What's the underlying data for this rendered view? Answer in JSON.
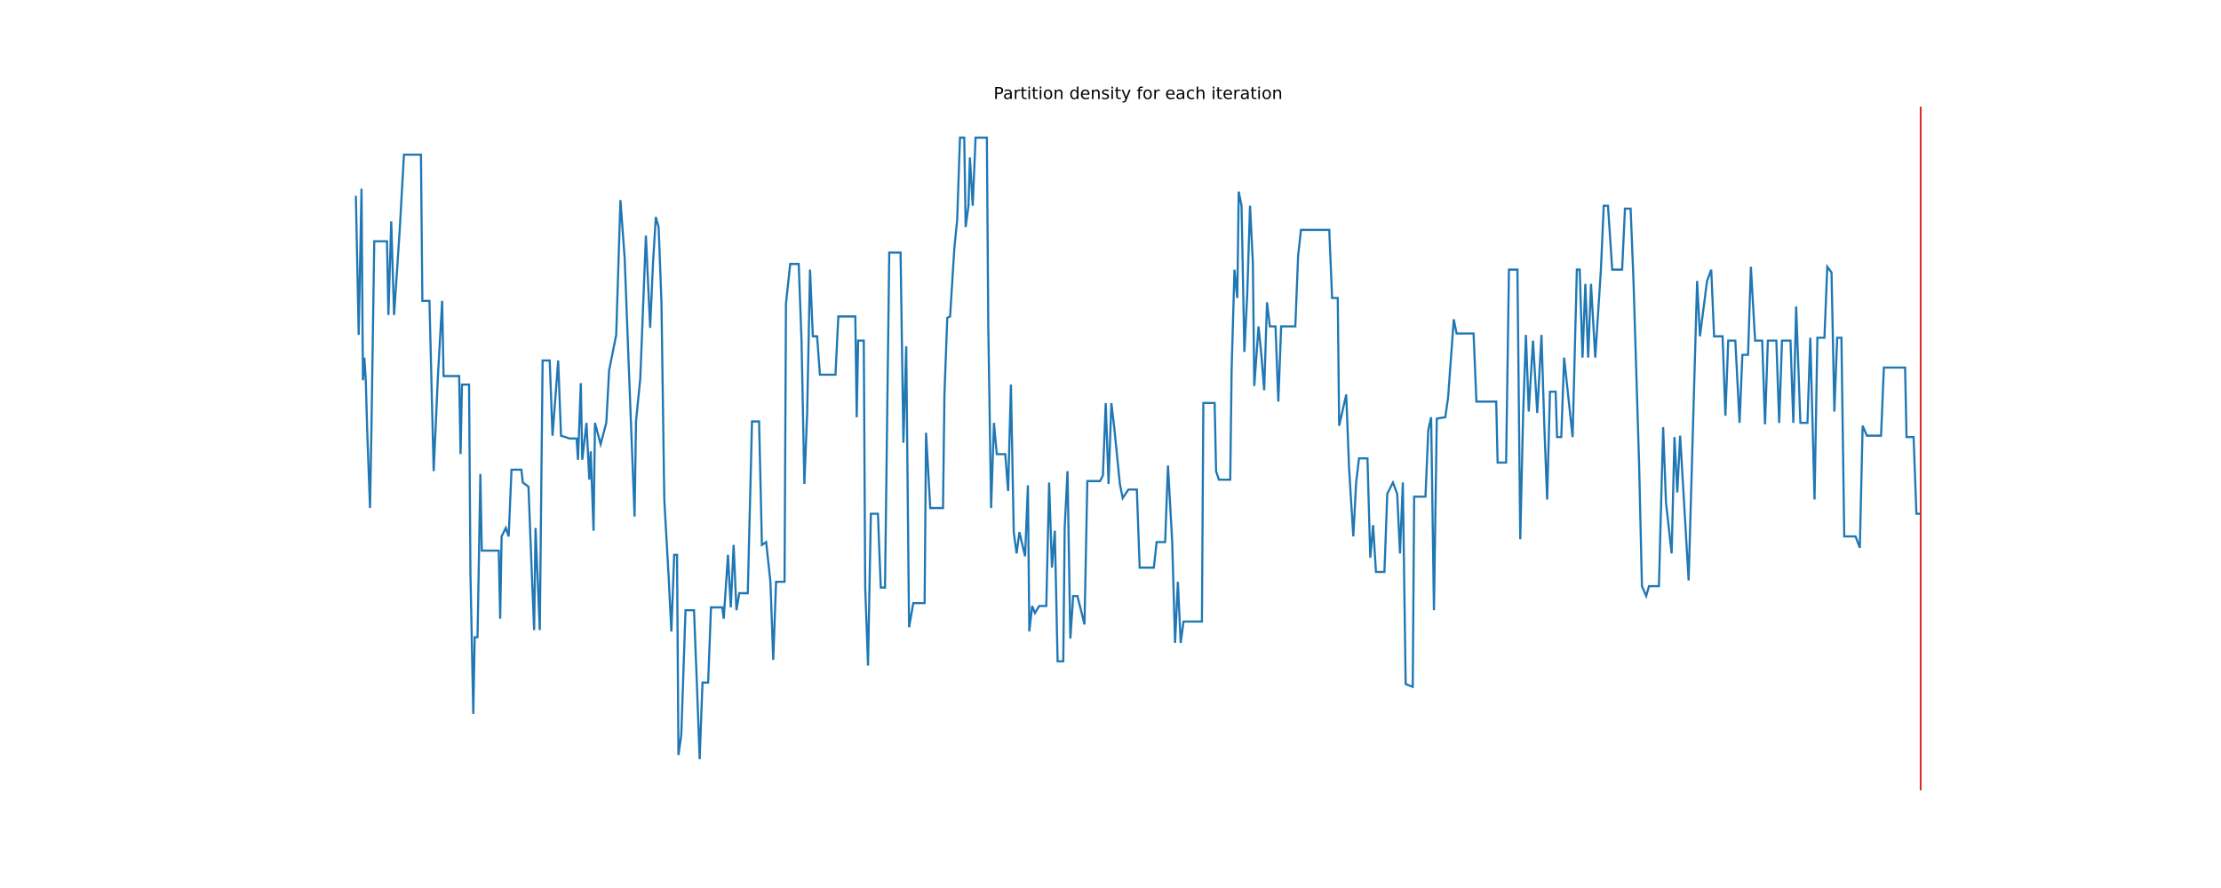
{
  "chart_data": {
    "type": "line",
    "title": "Partition density for each iteration",
    "x": [
      0,
      2,
      4,
      5,
      6,
      7,
      8,
      10,
      11,
      13,
      22,
      23,
      25,
      27,
      31,
      34,
      46,
      47,
      52,
      55,
      58,
      61,
      62,
      73,
      74,
      75,
      80,
      81,
      83,
      84,
      86,
      88,
      89,
      101,
      102,
      103,
      106,
      108,
      110,
      117,
      118,
      122,
      124,
      126,
      127,
      130,
      132,
      137,
      139,
      143,
      145,
      151,
      156,
      157,
      159,
      160,
      163,
      165,
      166,
      168,
      169,
      173,
      177,
      179,
      184,
      187,
      190,
      193,
      197,
      198,
      201,
      205,
      208,
      210,
      212,
      214,
      216,
      218,
      221,
      223,
      225,
      227,
      228,
      230,
      233,
      239,
      241,
      243,
      245,
      249,
      251,
      259,
      260,
      263,
      265,
      267,
      269,
      271,
      277,
      280,
      285,
      287,
      290,
      293,
      295,
      297,
      303,
      304,
      307,
      313,
      315,
      317,
      319,
      321,
      323,
      326,
      328,
      339,
      341,
      353,
      354,
      355,
      359,
      360,
      362,
      364,
      369,
      371,
      374,
      377,
      385,
      387,
      389,
      391,
      394,
      402,
      403,
      406,
      415,
      416,
      418,
      420,
      423,
      425,
      427,
      430,
      431,
      433,
      434,
      436,
      438,
      446,
      447,
      449,
      451,
      453,
      459,
      461,
      463,
      465,
      467,
      469,
      473,
      475,
      476,
      478,
      480,
      483,
      488,
      490,
      492,
      494,
      496,
      500,
      501,
      503,
      505,
      507,
      510,
      512,
      515,
      517,
      526,
      528,
      530,
      532,
      534,
      536,
      540,
      542,
      546,
      552,
      554,
      564,
      566,
      572,
      574,
      577,
      579,
      581,
      583,
      585,
      598,
      599,
      607,
      608,
      610,
      618,
      619,
      621,
      623,
      624,
      626,
      628,
      630,
      632,
      634,
      635,
      638,
      640,
      642,
      644,
      646,
      650,
      652,
      654,
      664,
      666,
      668,
      688,
      690,
      694,
      695,
      700,
      702,
      705,
      707,
      709,
      715,
      717,
      719,
      721,
      727,
      729,
      733,
      736,
      738,
      740,
      742,
      747,
      748,
      756,
      758,
      760,
      762,
      764,
      770,
      772,
      776,
      778,
      790,
      792,
      806,
      807,
      813,
      815,
      821,
      823,
      825,
      827,
      829,
      832,
      835,
      838,
      840,
      842,
      844,
      848,
      849,
      852,
      854,
      860,
      863,
      865,
      867,
      869,
      871,
      873,
      876,
      880,
      882,
      885,
      888,
      895,
      897,
      901,
      903,
      907,
      909,
      912,
      914,
      921,
      924,
      926,
      930,
      932,
      934,
      936,
      942,
      948,
      950,
      955,
      958,
      960,
      966,
      968,
      970,
      975,
      978,
      980,
      984,
      986,
      989,
      994,
      996,
      998,
      1004,
      1006,
      1008,
      1014,
      1016,
      1018,
      1021,
      1026,
      1028,
      1031,
      1033,
      1038,
      1040,
      1043,
      1045,
      1047,
      1050,
      1052,
      1060,
      1063,
      1065,
      1068,
      1078,
      1080,
      1095,
      1096,
      1101,
      1103,
      1106
    ],
    "series": [
      {
        "color": "#1f77b4",
        "values": [
          420,
          322,
          425,
          290,
          306,
          290,
          255,
          200,
          255,
          388,
          388,
          336,
          402,
          336,
          396,
          449,
          449,
          346,
          346,
          226,
          293,
          346,
          293,
          293,
          238,
          287,
          287,
          153,
          55,
          109,
          109,
          224,
          170,
          170,
          122,
          180,
          186,
          180,
          227,
          227,
          218,
          215,
          163,
          114,
          186,
          114,
          304,
          304,
          251,
          304,
          251,
          249,
          249,
          234,
          288,
          234,
          260,
          220,
          240,
          184,
          260,
          245,
          260,
          297,
          322,
          417,
          376,
          297,
          194,
          261,
          291,
          392,
          327,
          372,
          405,
          398,
          345,
          206,
          153,
          113,
          167,
          167,
          26,
          40,
          128,
          128,
          77,
          23,
          77,
          77,
          130,
          130,
          122,
          167,
          130,
          174,
          128,
          140,
          140,
          261,
          261,
          174,
          176,
          148,
          93,
          148,
          148,
          344,
          372,
          372,
          318,
          217,
          268,
          368,
          321,
          321,
          294,
          294,
          335,
          335,
          264,
          318,
          318,
          144,
          89,
          196,
          196,
          144,
          144,
          380,
          380,
          246,
          314,
          116,
          133,
          133,
          253,
          200,
          200,
          280,
          334,
          335,
          383,
          403,
          461,
          461,
          398,
          413,
          447,
          413,
          461,
          461,
          328,
          200,
          260,
          238,
          238,
          212,
          287,
          183,
          168,
          183,
          166,
          216,
          113,
          131,
          126,
          131,
          131,
          218,
          158,
          184,
          92,
          92,
          186,
          226,
          108,
          138,
          138,
          130,
          118,
          219,
          219,
          223,
          274,
          217,
          274,
          257,
          217,
          207,
          213,
          213,
          158,
          158,
          176,
          176,
          230,
          176,
          105,
          148,
          105,
          120,
          120,
          274,
          274,
          226,
          220,
          220,
          298,
          368,
          348,
          423,
          413,
          310,
          350,
          413,
          373,
          286,
          328,
          308,
          283,
          345,
          328,
          328,
          275,
          328,
          328,
          378,
          396,
          396,
          348,
          348,
          258,
          280,
          228,
          180,
          218,
          235,
          235,
          165,
          188,
          155,
          155,
          210,
          218,
          210,
          168,
          218,
          76,
          74,
          208,
          208,
          255,
          264,
          128,
          263,
          264,
          278,
          333,
          323,
          323,
          275,
          275,
          232,
          232,
          368,
          368,
          178,
          265,
          322,
          268,
          318,
          267,
          322,
          258,
          206,
          282,
          282,
          250,
          250,
          306,
          250,
          368,
          368,
          306,
          358,
          306,
          358,
          306,
          368,
          413,
          413,
          368,
          368,
          411,
          411,
          361,
          231,
          145,
          138,
          145,
          145,
          257,
          204,
          168,
          250,
          211,
          251,
          149,
          360,
          321,
          360,
          368,
          321,
          321,
          265,
          318,
          318,
          260,
          308,
          308,
          370,
          318,
          318,
          259,
          318,
          318,
          260,
          318,
          318,
          260,
          342,
          260,
          260,
          320,
          206,
          320,
          320,
          370,
          366,
          268,
          320,
          320,
          180,
          180,
          172,
          258,
          251,
          251,
          299,
          299,
          250,
          250,
          196,
          196
        ]
      }
    ],
    "xlim": [
      -55.3,
      1161.3
    ],
    "ylim": [
      1.1,
      482.9
    ],
    "vlines": [
      {
        "x": 1106,
        "color": "#d62728"
      }
    ]
  }
}
